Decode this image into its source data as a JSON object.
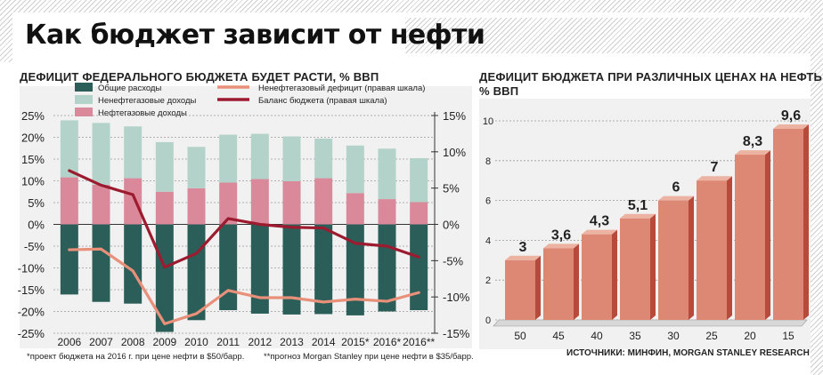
{
  "title": "Как бюджет зависит от нефти",
  "left_chart": {
    "heading": "ДЕФИЦИТ ФЕДЕРАЛЬНОГО БЮДЖЕТА БУДЕТ РАСТИ, % ВВП",
    "footnote1": "*проект бюджета на 2016 г. при цене нефти в $50/барр.",
    "footnote2": "**прогноз Morgan Stanley при цене нефти в $35/барр."
  },
  "right_chart": {
    "heading": "ДЕФИЦИТ БЮДЖЕТА ПРИ РАЗЛИЧНЫХ ЦЕНАХ НА НЕФТЬ",
    "unit": "% ВВП",
    "source": "ИСТОЧНИКИ: МИНФИН, MORGAN STANLEY RESEARCH"
  },
  "colors": {
    "total_spending": "#2b5e58",
    "nonoil_revenue": "#b3d3ca",
    "oil_revenue": "#d9899a",
    "nonoil_deficit": "#e8907a",
    "balance": "#9c1b2f",
    "bar_front": "#dc8874",
    "bar_side": "#b84a3c",
    "bar_top": "#ecb3a2"
  },
  "chart_data": [
    {
      "type": "bar",
      "categories": [
        "2006",
        "2007",
        "2008",
        "2009",
        "2010",
        "2011",
        "2012",
        "2013",
        "2014",
        "2015*",
        "2016*",
        "2016**"
      ],
      "left_axis": {
        "ylim": [
          -25,
          25
        ],
        "ticks": [
          "25%",
          "20%",
          "15%",
          "10%",
          "5%",
          "0%",
          "-5%",
          "-10%",
          "-15%",
          "-20%",
          "-25%"
        ]
      },
      "right_axis": {
        "ylim": [
          -15,
          15
        ],
        "ticks": [
          "15%",
          "10%",
          "5%",
          "0%",
          "-5%",
          "-10%",
          "-15%"
        ]
      },
      "series": [
        {
          "name": "Общие расходы",
          "kind": "bar",
          "axis": "left",
          "values": [
            -16.1,
            -17.8,
            -18.2,
            -24.7,
            -22.0,
            -19.7,
            -20.5,
            -20.7,
            -20.6,
            -20.9,
            -20.0,
            -19.7
          ]
        },
        {
          "name": "Нефтегазовые доходы",
          "kind": "bar-stack-lower",
          "axis": "left",
          "values": [
            10.8,
            9.1,
            10.6,
            7.5,
            8.3,
            9.6,
            10.4,
            9.9,
            10.6,
            7.2,
            5.8,
            5.1
          ]
        },
        {
          "name": "Ненефтегазовые доходы",
          "kind": "bar-stack-upper",
          "axis": "left",
          "values": [
            13.1,
            14.2,
            11.9,
            11.4,
            9.5,
            11.0,
            10.4,
            10.3,
            9.1,
            10.9,
            11.6,
            10.1
          ]
        },
        {
          "name": "Ненефтегазовый дефицит (правая шкала)",
          "kind": "line",
          "axis": "right",
          "values": [
            -3.5,
            -3.4,
            -6.4,
            -13.7,
            -12.3,
            -9.1,
            -10.1,
            -10.1,
            -10.7,
            -10.3,
            -10.6,
            -9.4
          ]
        },
        {
          "name": "Баланс бюджета (правая шкала)",
          "kind": "line",
          "axis": "right",
          "values": [
            7.4,
            5.4,
            4.1,
            -5.9,
            -4.0,
            0.8,
            0.0,
            -0.4,
            -0.5,
            -2.6,
            -3.0,
            -4.5
          ]
        }
      ],
      "legend": "top"
    },
    {
      "type": "bar",
      "categories": [
        "50",
        "45",
        "40",
        "35",
        "30",
        "25",
        "20",
        "15"
      ],
      "values": [
        3,
        3.6,
        4.3,
        5.1,
        6,
        7,
        8.3,
        9.6
      ],
      "labels": [
        "3",
        "3,6",
        "4,3",
        "5,1",
        "6",
        "7",
        "8,3",
        "9,6"
      ],
      "ylim": [
        0,
        10
      ],
      "ticks": [
        "0",
        "2",
        "4",
        "6",
        "8",
        "10"
      ]
    }
  ]
}
